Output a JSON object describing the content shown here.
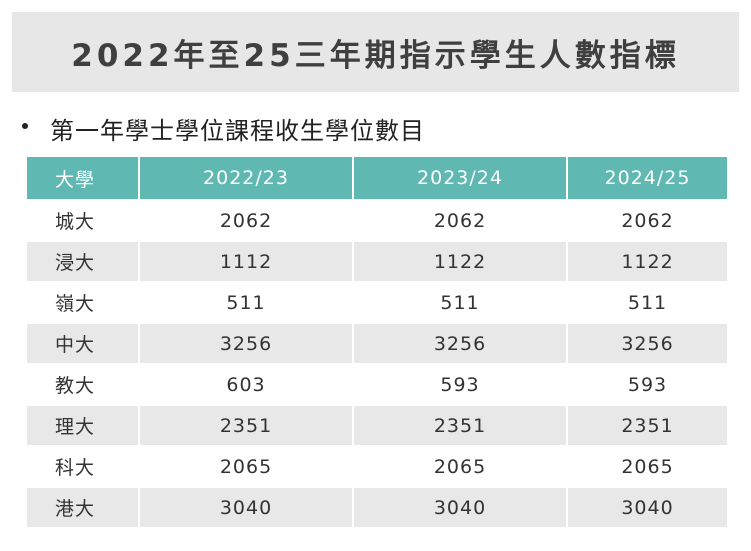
{
  "banner": {
    "title": "2022年至25三年期指示學生人數指標"
  },
  "section": {
    "subtitle": "第一年學士學位課程收生學位數目"
  },
  "table": {
    "headers": [
      "大學",
      "2022/23",
      "2023/24",
      "2024/25"
    ],
    "rows": [
      [
        "城大",
        "2062",
        "2062",
        "2062"
      ],
      [
        "浸大",
        "1112",
        "1122",
        "1122"
      ],
      [
        "嶺大",
        "511",
        "511",
        "511"
      ],
      [
        "中大",
        "3256",
        "3256",
        "3256"
      ],
      [
        "教大",
        "603",
        "593",
        "593"
      ],
      [
        "理大",
        "2351",
        "2351",
        "2351"
      ],
      [
        "科大",
        "2065",
        "2065",
        "2065"
      ],
      [
        "港大",
        "3040",
        "3040",
        "3040"
      ]
    ]
  },
  "colors": {
    "header_bg": "#5fb8b1",
    "banner_bg": "#e7e7e7",
    "stripe_bg": "#e8e8e8"
  }
}
